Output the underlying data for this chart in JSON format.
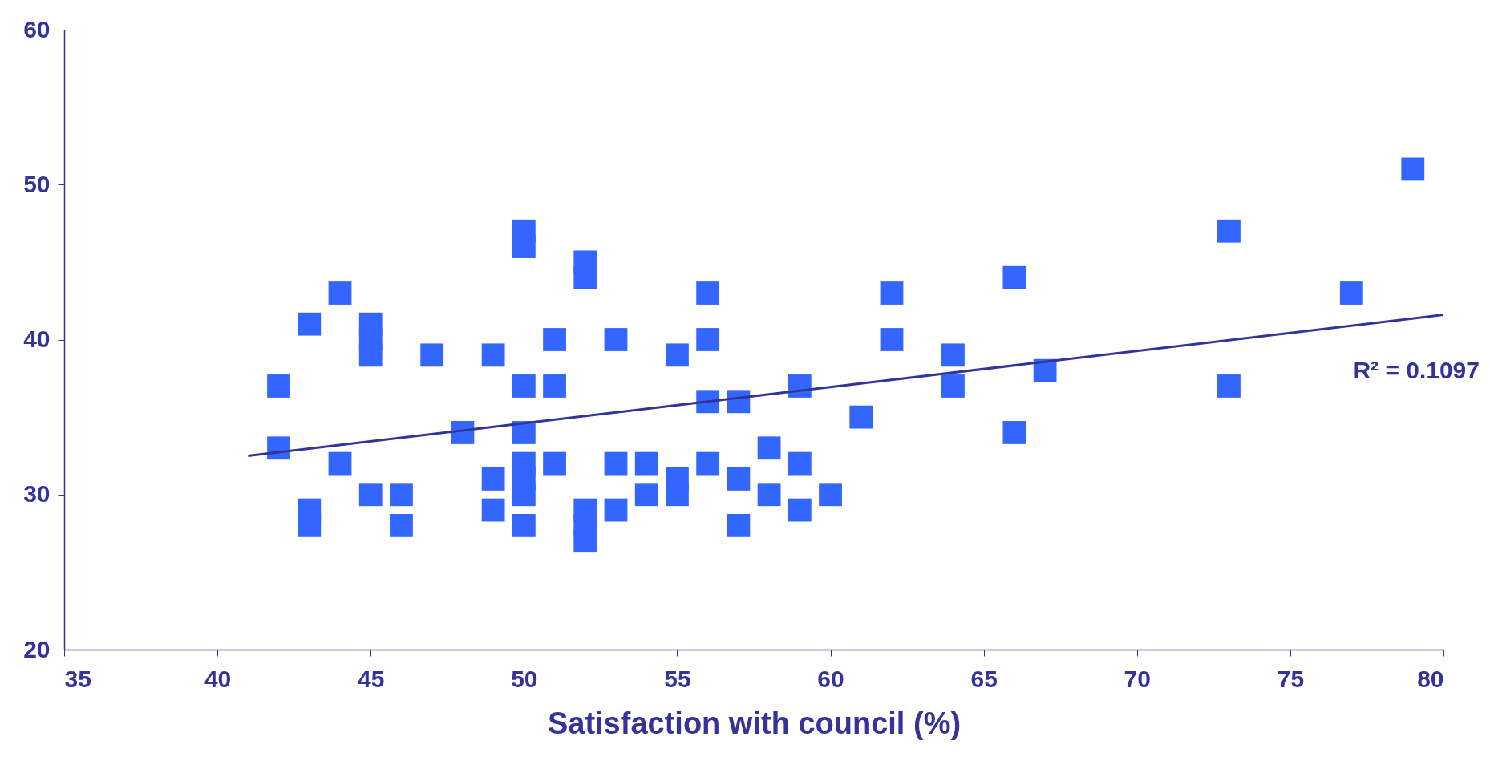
{
  "chart_data": {
    "type": "scatter",
    "xlabel": "Satisfaction with council (%)",
    "xlim": [
      35,
      80
    ],
    "xticks": [
      35,
      40,
      45,
      50,
      55,
      60,
      65,
      70,
      75,
      80
    ],
    "ylim": [
      20,
      60
    ],
    "yticks": [
      20,
      30,
      40,
      50,
      60
    ],
    "grid": false,
    "marker": "square",
    "series": [
      {
        "color": "#3366ff",
        "x": [
          42,
          42,
          43,
          43,
          43,
          44,
          44,
          45,
          45,
          45,
          45,
          46,
          46,
          47,
          48,
          49,
          49,
          49,
          50,
          50,
          50,
          50,
          50,
          50,
          50,
          50,
          51,
          51,
          51,
          52,
          52,
          52,
          52,
          52,
          53,
          53,
          53,
          54,
          54,
          55,
          55,
          55,
          56,
          56,
          56,
          56,
          57,
          57,
          57,
          58,
          58,
          59,
          59,
          59,
          60,
          61,
          62,
          62,
          64,
          64,
          66,
          66,
          67,
          73,
          73,
          77,
          79
        ],
        "values": [
          37,
          33,
          41,
          29,
          28,
          43,
          32,
          41,
          40,
          39,
          30,
          30,
          28,
          39,
          34,
          39,
          31,
          29,
          47,
          46,
          37,
          34,
          32,
          31,
          30,
          28,
          40,
          37,
          32,
          45,
          44,
          29,
          28,
          27,
          40,
          32,
          29,
          32,
          30,
          39,
          31,
          30,
          43,
          40,
          36,
          32,
          36,
          31,
          28,
          33,
          30,
          37,
          32,
          29,
          30,
          35,
          43,
          40,
          39,
          37,
          44,
          34,
          38,
          47,
          37,
          43,
          51
        ]
      },
      {
        "type": "line",
        "marker": "none",
        "color": "#333399",
        "x": [
          41,
          80
        ],
        "values": [
          32.5,
          41.6
        ]
      }
    ],
    "annotations": [
      "R² = 0.1097"
    ]
  }
}
